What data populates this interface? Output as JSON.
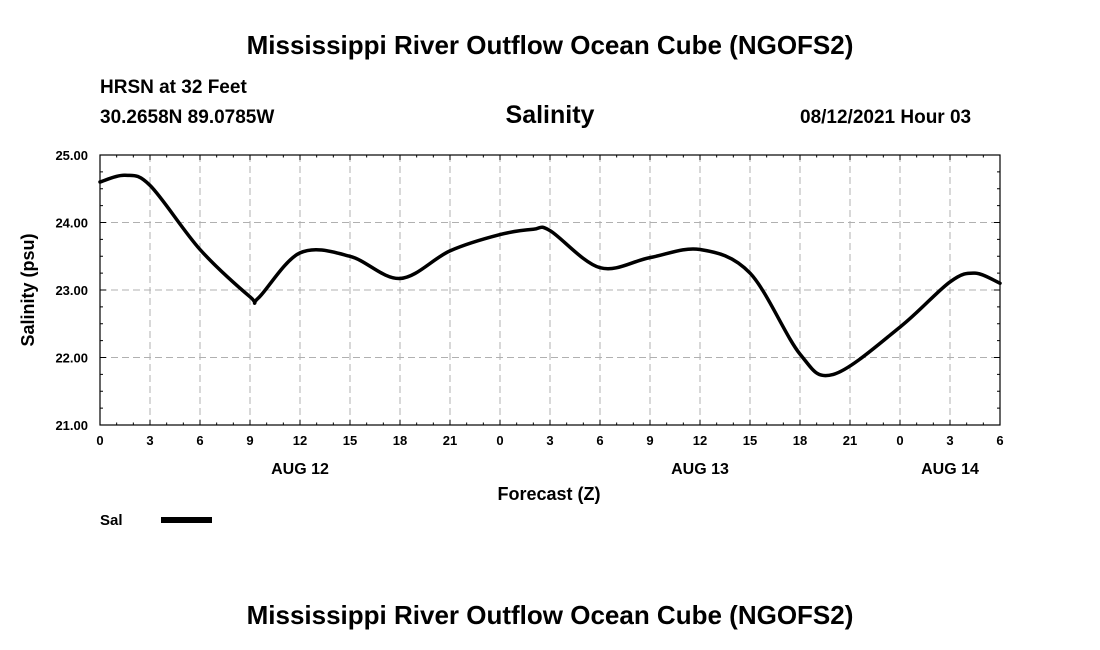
{
  "page": {
    "top_title": "Mississippi River Outflow Ocean Cube (NGOFS2)",
    "bottom_title": "Mississippi River Outflow Ocean Cube (NGOFS2)",
    "station": "HRSN at 32 Feet",
    "coords": "30.2658N  89.0785W",
    "variable": "Salinity",
    "datetime": "08/12/2021 Hour 03",
    "legend_label": "Sal"
  },
  "colors": {
    "line": "#000000",
    "grid": "#b0b0b0",
    "axis": "#000000"
  },
  "chart_data": {
    "type": "line",
    "title": "Salinity",
    "xlabel": "Forecast (Z)",
    "ylabel": "Salinity (psu)",
    "xlim": [
      0,
      54
    ],
    "ylim": [
      21.0,
      25.0
    ],
    "y_ticks": [
      21.0,
      22.0,
      23.0,
      24.0,
      25.0
    ],
    "y_tick_labels": [
      "21.00",
      "22.00",
      "23.00",
      "24.00",
      "25.00"
    ],
    "x_ticks": [
      0,
      3,
      6,
      9,
      12,
      15,
      18,
      21,
      24,
      27,
      30,
      33,
      36,
      39,
      42,
      45,
      48,
      51,
      54
    ],
    "x_tick_labels": [
      "0",
      "3",
      "6",
      "9",
      "12",
      "15",
      "18",
      "21",
      "0",
      "3",
      "6",
      "9",
      "12",
      "15",
      "18",
      "21",
      "0",
      "3",
      "6"
    ],
    "date_labels": [
      {
        "hour": 12,
        "label": "AUG 12"
      },
      {
        "hour": 36,
        "label": "AUG 13"
      },
      {
        "hour": 51,
        "label": "AUG 14"
      }
    ],
    "grid": true,
    "series": [
      {
        "name": "Sal",
        "x": [
          0,
          1.5,
          3,
          6,
          9,
          9.5,
          12,
          15,
          18,
          21,
          24,
          26,
          27,
          30,
          33,
          36,
          39,
          42,
          44,
          48,
          51,
          52.5,
          54
        ],
        "values": [
          24.6,
          24.7,
          24.55,
          23.6,
          22.9,
          22.88,
          23.55,
          23.5,
          23.17,
          23.58,
          23.82,
          23.9,
          23.88,
          23.33,
          23.48,
          23.6,
          23.25,
          22.05,
          21.75,
          22.45,
          23.12,
          23.25,
          23.1
        ]
      }
    ]
  }
}
